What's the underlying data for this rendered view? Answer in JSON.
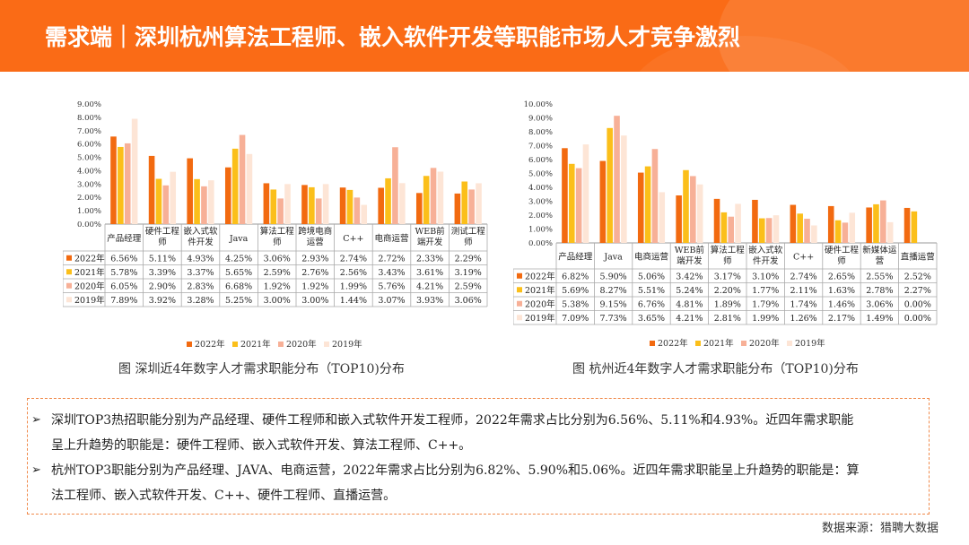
{
  "header": {
    "title": "需求端｜深圳杭州算法工程师、嵌入软件开发等职能市场人才竞争激烈",
    "bg_color": "#fa6b16"
  },
  "chart_data": [
    {
      "type": "bar",
      "title": "图 深圳近4年数字人才需求职能分布（TOP10)分布",
      "categories": [
        "产品经理",
        "硬件工程师",
        "嵌入式软件开发",
        "Java",
        "算法工程师",
        "跨境电商运营",
        "C++",
        "电商运营",
        "WEB前端开发",
        "测试工程师"
      ],
      "ylim": [
        0,
        9
      ],
      "yticks": [
        "0.00%",
        "1.00%",
        "2.00%",
        "3.00%",
        "4.00%",
        "5.00%",
        "6.00%",
        "7.00%",
        "8.00%",
        "9.00%"
      ],
      "legend_position": "bottom",
      "series": [
        {
          "name": "2022年",
          "color": "#f26a10",
          "values": [
            6.56,
            5.11,
            4.93,
            4.25,
            3.06,
            2.93,
            2.74,
            2.72,
            2.33,
            2.29
          ],
          "labels": [
            "6.56%",
            "5.11%",
            "4.93%",
            "4.25%",
            "3.06%",
            "2.93%",
            "2.74%",
            "2.72%",
            "2.33%",
            "2.29%"
          ]
        },
        {
          "name": "2021年",
          "color": "#fbbf1a",
          "values": [
            5.78,
            3.39,
            3.37,
            5.65,
            2.59,
            2.76,
            2.56,
            3.43,
            3.61,
            3.19
          ],
          "labels": [
            "5.78%",
            "3.39%",
            "3.37%",
            "5.65%",
            "2.59%",
            "2.76%",
            "2.56%",
            "3.43%",
            "3.61%",
            "3.19%"
          ]
        },
        {
          "name": "2020年",
          "color": "#f7b097",
          "values": [
            6.05,
            2.9,
            2.83,
            6.68,
            1.92,
            1.92,
            1.99,
            5.76,
            4.21,
            2.59
          ],
          "labels": [
            "6.05%",
            "2.90%",
            "2.83%",
            "6.68%",
            "1.92%",
            "1.92%",
            "1.99%",
            "5.76%",
            "4.21%",
            "2.59%"
          ]
        },
        {
          "name": "2019年",
          "color": "#fde5d6",
          "values": [
            7.89,
            3.92,
            3.28,
            5.25,
            3.0,
            3.0,
            1.44,
            3.07,
            3.93,
            3.06
          ],
          "labels": [
            "7.89%",
            "3.92%",
            "3.28%",
            "5.25%",
            "3.00%",
            "3.00%",
            "1.44%",
            "3.07%",
            "3.93%",
            "3.06%"
          ]
        }
      ]
    },
    {
      "type": "bar",
      "title": "图 杭州近4年数字人才需求职能分布（TOP10)分布",
      "categories": [
        "产品经理",
        "Java",
        "电商运营",
        "WEB前端开发",
        "算法工程师",
        "嵌入式软件开发",
        "C++",
        "硬件工程师",
        "新媒体运营",
        "直播运营"
      ],
      "ylim": [
        0,
        10
      ],
      "yticks": [
        "0.00%",
        "1.00%",
        "2.00%",
        "3.00%",
        "4.00%",
        "5.00%",
        "6.00%",
        "7.00%",
        "8.00%",
        "9.00%",
        "10.00%"
      ],
      "legend_position": "bottom",
      "series": [
        {
          "name": "2022年",
          "color": "#f26a10",
          "values": [
            6.82,
            5.9,
            5.06,
            3.42,
            3.17,
            3.1,
            2.74,
            2.65,
            2.55,
            2.52
          ],
          "labels": [
            "6.82%",
            "5.90%",
            "5.06%",
            "3.42%",
            "3.17%",
            "3.10%",
            "2.74%",
            "2.65%",
            "2.55%",
            "2.52%"
          ]
        },
        {
          "name": "2021年",
          "color": "#fbbf1a",
          "values": [
            5.69,
            8.27,
            5.51,
            5.24,
            2.2,
            1.77,
            2.11,
            1.63,
            2.78,
            2.27
          ],
          "labels": [
            "5.69%",
            "8.27%",
            "5.51%",
            "5.24%",
            "2.20%",
            "1.77%",
            "2.11%",
            "1.63%",
            "2.78%",
            "2.27%"
          ]
        },
        {
          "name": "2020年",
          "color": "#f7b097",
          "values": [
            5.38,
            9.15,
            6.76,
            4.81,
            1.89,
            1.79,
            1.74,
            1.46,
            3.06,
            0.0
          ],
          "labels": [
            "5.38%",
            "9.15%",
            "6.76%",
            "4.81%",
            "1.89%",
            "1.79%",
            "1.74%",
            "1.46%",
            "3.06%",
            "0.00%"
          ]
        },
        {
          "name": "2019年",
          "color": "#fde5d6",
          "values": [
            7.09,
            7.73,
            3.65,
            4.21,
            2.81,
            1.99,
            1.26,
            2.17,
            1.49,
            0.0
          ],
          "labels": [
            "7.09%",
            "7.73%",
            "3.65%",
            "4.21%",
            "2.81%",
            "1.99%",
            "1.26%",
            "2.17%",
            "1.49%",
            "0.00%"
          ]
        }
      ]
    }
  ],
  "notes": [
    {
      "line1": "深圳TOP3热招职能分别为产品经理、硬件工程师和嵌入式软件开发工程师，2022年需求占比分别为6.56%、5.11%和4.93%。近四年需求职能",
      "line2": "呈上升趋势的职能是：硬件工程师、嵌入式软件开发、算法工程师、C++。"
    },
    {
      "line1": "杭州TOP3职能分别为产品经理、JAVA、电商运营，2022年需求占比分别为6.82%、5.90%和5.06%。近四年需求职能呈上升趋势的职能是：算",
      "line2": "法工程师、嵌入式软件开发、C++、硬件工程师、直播运营。"
    }
  ],
  "source": "数据来源：猎聘大数据"
}
